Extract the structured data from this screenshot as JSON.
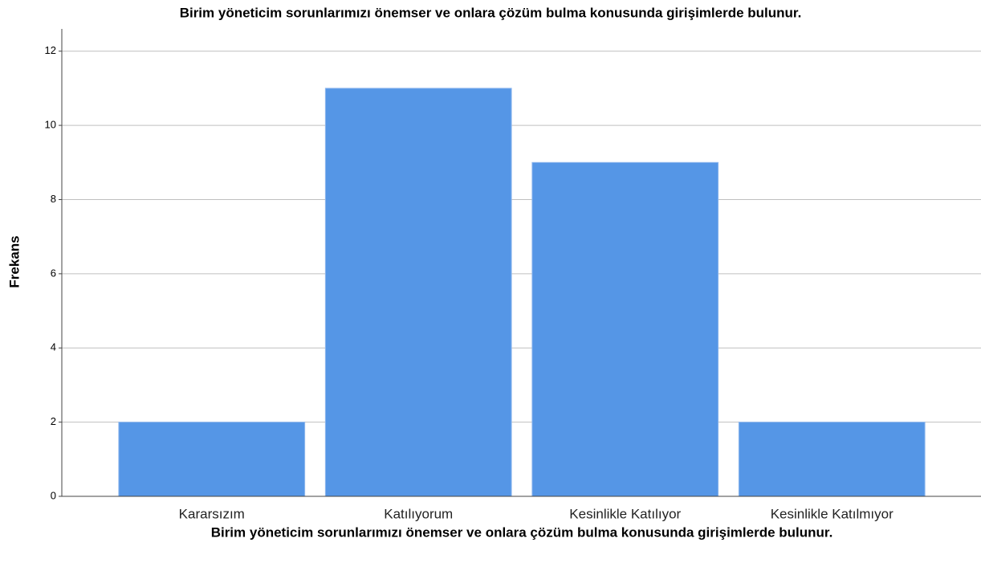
{
  "chart_data": {
    "type": "bar",
    "title": "Birim yöneticim sorunlarımızı önemser ve onlara çözüm bulma konusunda girişimlerde bulunur.",
    "x_label": "Birim yöneticim sorunlarımızı önemser ve onlara çözüm bulma konusunda girişimlerde bulunur.",
    "y_label": "Frekans",
    "categories": [
      "Kararsızım",
      "Katılıyorum",
      "Kesinlikle Katılıyor",
      "Kesinlikle Katılmıyor"
    ],
    "values": [
      2,
      11,
      9,
      2
    ],
    "color": "#5596e6",
    "ylim": [
      0,
      12.6
    ],
    "yticks": [
      0,
      2,
      4,
      6,
      8,
      10,
      12
    ],
    "grid": true
  }
}
